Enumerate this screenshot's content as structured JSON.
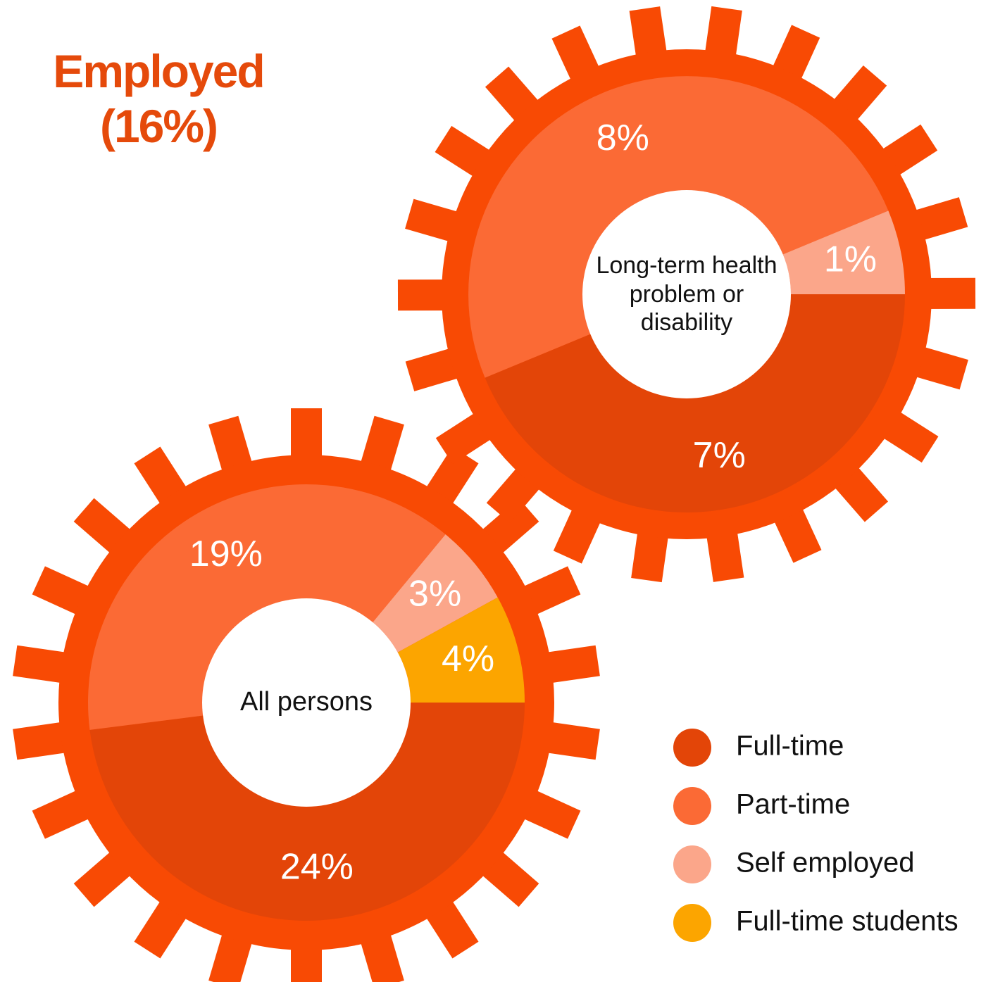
{
  "title": "Employed (16%)",
  "chart_data": [
    {
      "type": "donut",
      "center_label": "All persons",
      "categories": [
        "Full-time",
        "Part-time",
        "Self employed",
        "Full-time students"
      ],
      "values": [
        24,
        19,
        3,
        4
      ],
      "value_labels": [
        "24%",
        "19%",
        "3%",
        "4%"
      ],
      "colors": [
        "#e34508",
        "#fb6a35",
        "#fba68a",
        "#fca500"
      ]
    },
    {
      "type": "donut",
      "center_label": "Long-term health problem or disability",
      "categories": [
        "Full-time",
        "Part-time",
        "Self employed"
      ],
      "values": [
        7,
        8,
        1
      ],
      "value_labels": [
        "7%",
        "8%",
        "1%"
      ],
      "colors": [
        "#e34508",
        "#fb6a35",
        "#fba68a"
      ]
    }
  ]
}
